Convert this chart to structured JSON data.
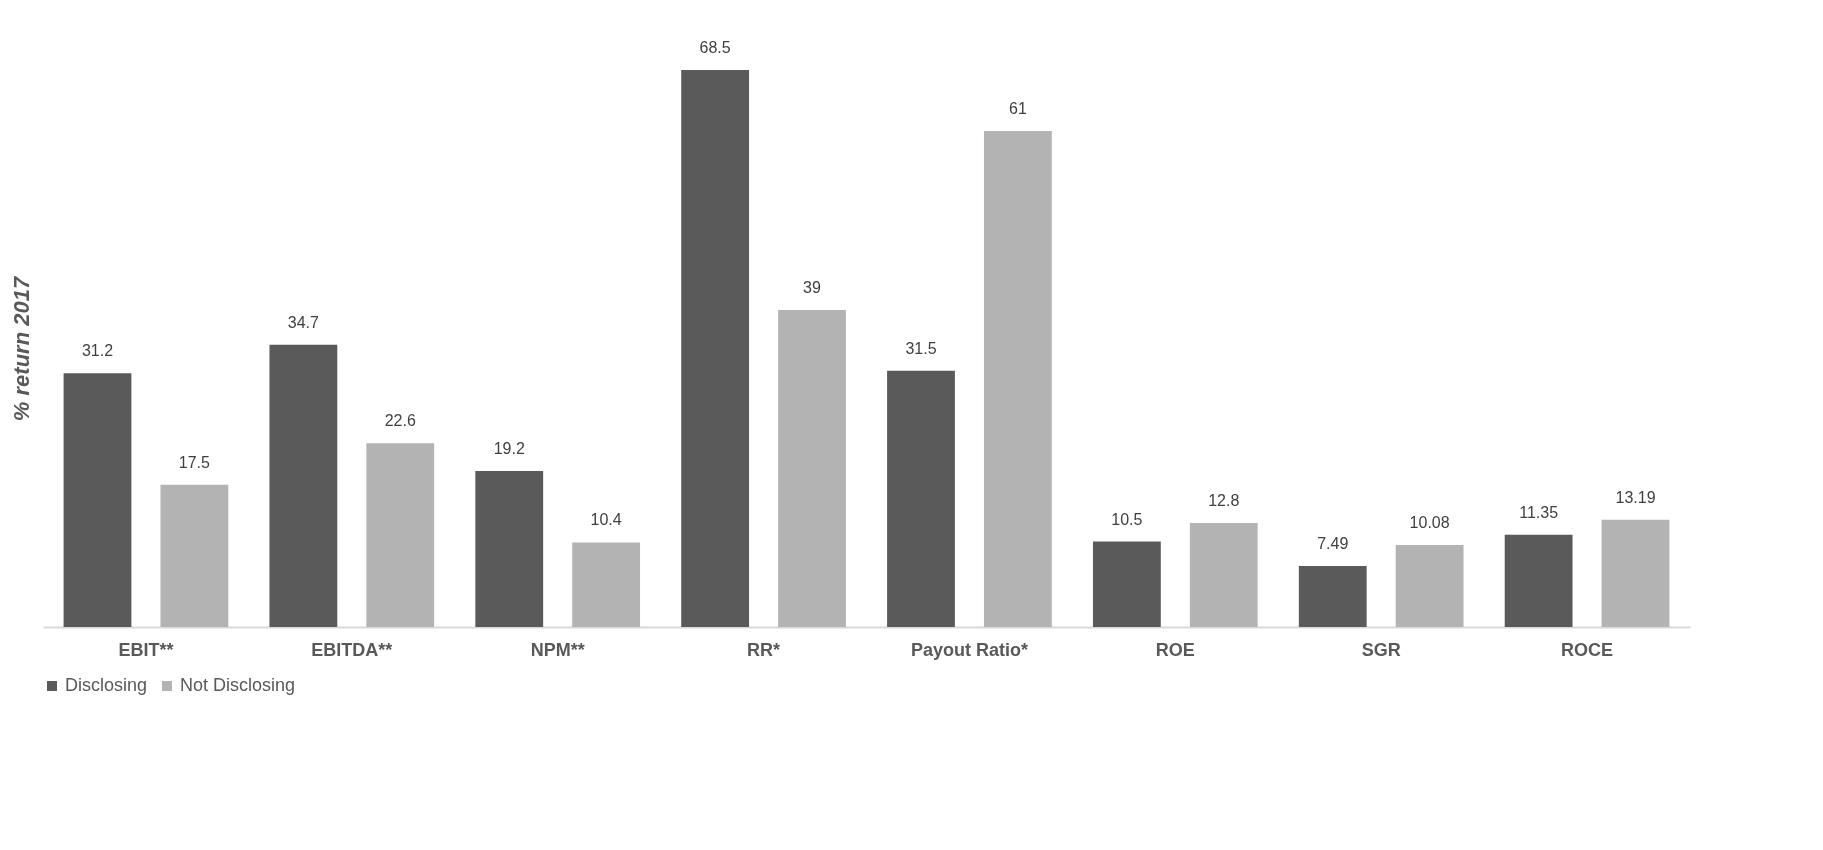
{
  "chart_data": {
    "type": "bar",
    "ylabel": "% return 2017",
    "categories": [
      "EBIT**",
      "EBITDA**",
      "NPM**",
      "RR*",
      "Payout Ratio*",
      "ROE",
      "SGR",
      "ROCE"
    ],
    "series": [
      {
        "name": "Disclosing",
        "color": "#5a5a5a",
        "values": [
          31.2,
          34.7,
          19.2,
          68.5,
          31.5,
          10.5,
          7.49,
          11.35
        ]
      },
      {
        "name": "Not Disclosing",
        "color": "#b3b3b3",
        "values": [
          17.5,
          22.6,
          10.4,
          39,
          61,
          12.8,
          10.08,
          13.19
        ]
      }
    ],
    "data_labels": true,
    "legend": "bottom",
    "grid": false
  }
}
